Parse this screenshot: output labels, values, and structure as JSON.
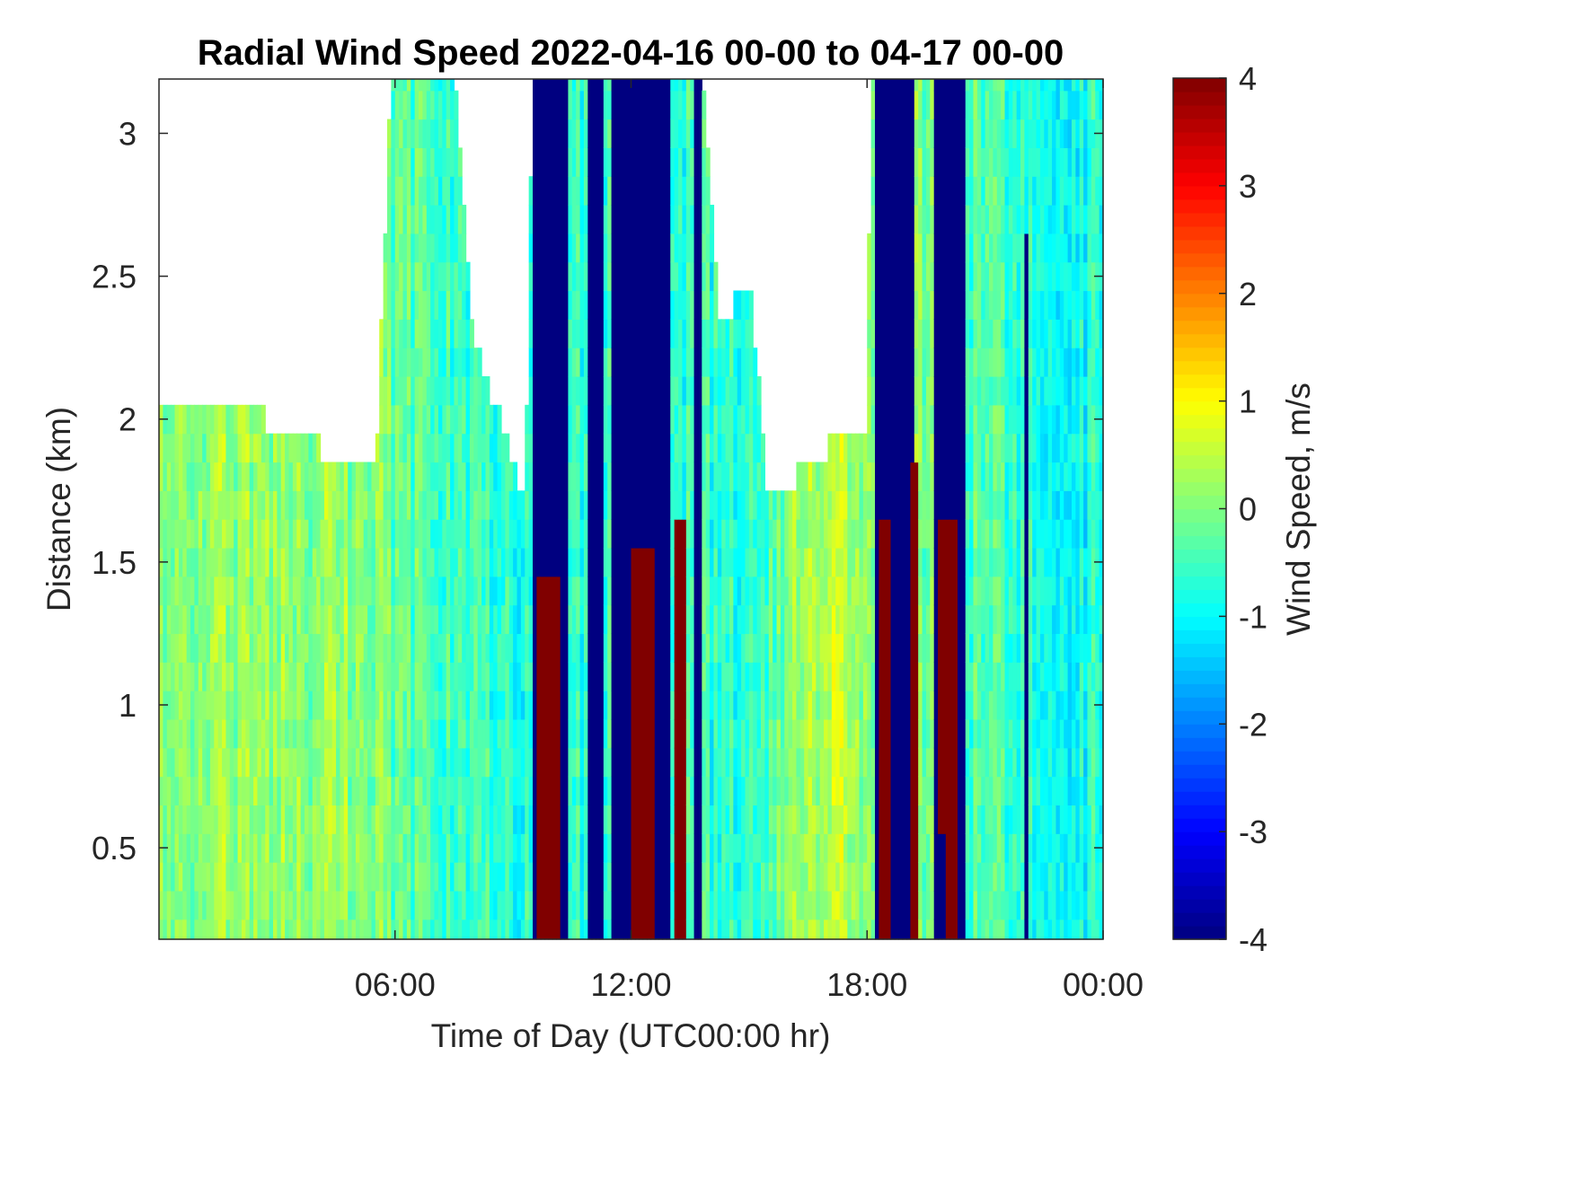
{
  "chart_data": {
    "type": "heatmap",
    "title": "Radial Wind Speed 2022-04-16 00-00 to 04-17 00-00",
    "xlabel": "Time of Day (UTC00:00 hr)",
    "ylabel": "Distance (km)",
    "colorbar_label": "Wind Speed, m/s",
    "colormap": "jet",
    "xlim": [
      0,
      24
    ],
    "ylim": [
      0.18,
      3.19
    ],
    "clim": [
      -4,
      4
    ],
    "x_ticks": [
      {
        "value": 6,
        "label": "06:00"
      },
      {
        "value": 12,
        "label": "12:00"
      },
      {
        "value": 18,
        "label": "18:00"
      },
      {
        "value": 24,
        "label": "00:00"
      }
    ],
    "y_ticks": [
      {
        "value": 0.5,
        "label": "0.5"
      },
      {
        "value": 1,
        "label": "1"
      },
      {
        "value": 1.5,
        "label": "1.5"
      },
      {
        "value": 2,
        "label": "2"
      },
      {
        "value": 2.5,
        "label": "2.5"
      },
      {
        "value": 3,
        "label": "3"
      }
    ],
    "colorbar_ticks": [
      {
        "value": 4,
        "label": "4"
      },
      {
        "value": 3,
        "label": "3"
      },
      {
        "value": 2,
        "label": "2"
      },
      {
        "value": 1,
        "label": "1"
      },
      {
        "value": 0,
        "label": "0"
      },
      {
        "value": -1,
        "label": "-1"
      },
      {
        "value": -2,
        "label": "-2"
      },
      {
        "value": -3,
        "label": "-3"
      },
      {
        "value": -4,
        "label": "-4"
      }
    ],
    "grid": false,
    "time_resolution_hr": 0.1,
    "distance_levels_km": [
      0.2,
      0.3,
      0.4,
      0.5,
      0.6,
      0.7,
      0.8,
      0.9,
      1.0,
      1.1,
      1.2,
      1.3,
      1.4,
      1.5,
      1.6,
      1.7,
      1.8,
      1.9,
      2.0,
      2.1,
      2.2,
      2.3,
      2.4,
      2.5,
      2.6,
      2.7,
      2.8,
      2.9,
      3.0,
      3.1,
      3.2
    ],
    "max_valid_distance_km": [
      {
        "t": 0.0,
        "d": 2.0
      },
      {
        "t": 2.0,
        "d": 2.05
      },
      {
        "t": 5.5,
        "d": 1.8
      },
      {
        "t": 5.9,
        "d": 3.2
      },
      {
        "t": 7.5,
        "d": 3.2
      },
      {
        "t": 8.0,
        "d": 2.3
      },
      {
        "t": 9.3,
        "d": 1.7
      },
      {
        "t": 9.5,
        "d": 3.2
      },
      {
        "t": 13.8,
        "d": 3.2
      },
      {
        "t": 14.3,
        "d": 2.3
      },
      {
        "t": 15.0,
        "d": 2.5
      },
      {
        "t": 15.5,
        "d": 1.7
      },
      {
        "t": 17.0,
        "d": 1.9
      },
      {
        "t": 18.0,
        "d": 2.0
      },
      {
        "t": 18.1,
        "d": 3.2
      },
      {
        "t": 20.0,
        "d": 3.2
      },
      {
        "t": 21.5,
        "d": 3.2
      },
      {
        "t": 24.0,
        "d": 3.2
      }
    ],
    "background_wind_speed_m_s": [
      {
        "t": 0.0,
        "v": 0.1
      },
      {
        "t": 5.5,
        "v": 0.1
      },
      {
        "t": 6.0,
        "v": -0.3
      },
      {
        "t": 9.0,
        "v": -0.7
      },
      {
        "t": 12.0,
        "v": -0.6
      },
      {
        "t": 15.0,
        "v": -0.7
      },
      {
        "t": 17.0,
        "v": 0.6
      },
      {
        "t": 18.0,
        "v": 0.2
      },
      {
        "t": 20.5,
        "v": -0.3
      },
      {
        "t": 22.5,
        "v": -0.9
      },
      {
        "t": 24.0,
        "v": -0.8
      }
    ],
    "saturated_bands": [
      {
        "t_start": 9.5,
        "t_end": 10.4,
        "d_top": 3.2,
        "value": -4,
        "note": "upper"
      },
      {
        "t_start": 9.6,
        "t_end": 10.2,
        "d_top": 1.4,
        "value": 4
      },
      {
        "t_start": 10.9,
        "t_end": 11.3,
        "d_top": 3.2,
        "value": -4
      },
      {
        "t_start": 11.5,
        "t_end": 13.0,
        "d_top": 3.2,
        "value": -4
      },
      {
        "t_start": 12.0,
        "t_end": 12.6,
        "d_top": 1.5,
        "value": 4
      },
      {
        "t_start": 13.1,
        "t_end": 13.4,
        "d_top": 1.6,
        "value": 4
      },
      {
        "t_start": 13.6,
        "t_end": 13.8,
        "d_top": 3.2,
        "value": -4
      },
      {
        "t_start": 18.2,
        "t_end": 19.2,
        "d_top": 3.2,
        "value": -4
      },
      {
        "t_start": 18.3,
        "t_end": 18.6,
        "d_top": 1.6,
        "value": 4
      },
      {
        "t_start": 19.1,
        "t_end": 19.3,
        "d_top": 1.8,
        "value": 4
      },
      {
        "t_start": 19.7,
        "t_end": 20.5,
        "d_top": 3.2,
        "value": -4
      },
      {
        "t_start": 19.8,
        "t_end": 20.3,
        "d_top": 1.6,
        "value": 4
      },
      {
        "t_start": 19.7,
        "t_end": 20.0,
        "d_top": 0.5,
        "value": -4
      },
      {
        "t_start": 22.0,
        "t_end": 22.15,
        "d_top": 2.6,
        "value": -4
      }
    ]
  }
}
